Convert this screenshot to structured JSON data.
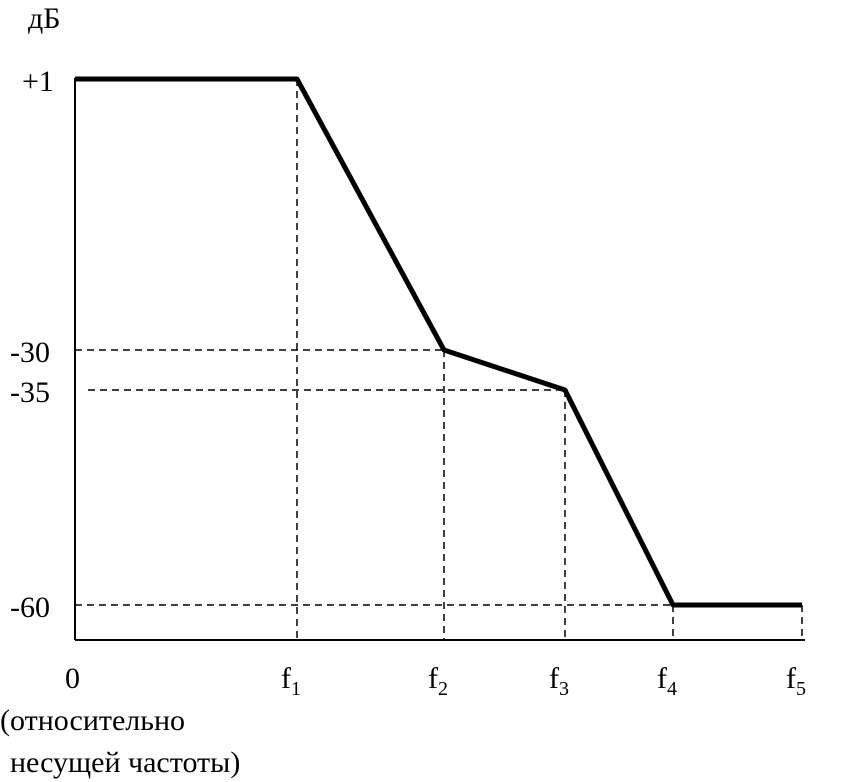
{
  "chart_data": {
    "type": "line",
    "ylabel": "дБ",
    "xlabel_lines": [
      "(относительно",
      "несущей частоты)"
    ],
    "x_ticks": [
      {
        "base": "0",
        "sub": ""
      },
      {
        "base": "f",
        "sub": "1"
      },
      {
        "base": "f",
        "sub": "2"
      },
      {
        "base": "f",
        "sub": "3"
      },
      {
        "base": "f",
        "sub": "4"
      },
      {
        "base": "f",
        "sub": "5"
      }
    ],
    "y_ticks": [
      "+1",
      "-30",
      "-35",
      "-60"
    ],
    "series": [
      {
        "points": [
          {
            "x": "0",
            "y": 1
          },
          {
            "x": "f1",
            "y": 1
          },
          {
            "x": "f2",
            "y": -30
          },
          {
            "x": "f3",
            "y": -35
          },
          {
            "x": "f4",
            "y": -60
          },
          {
            "x": "f5",
            "y": -60
          }
        ]
      }
    ],
    "grid": false,
    "dashed_guides": true
  }
}
